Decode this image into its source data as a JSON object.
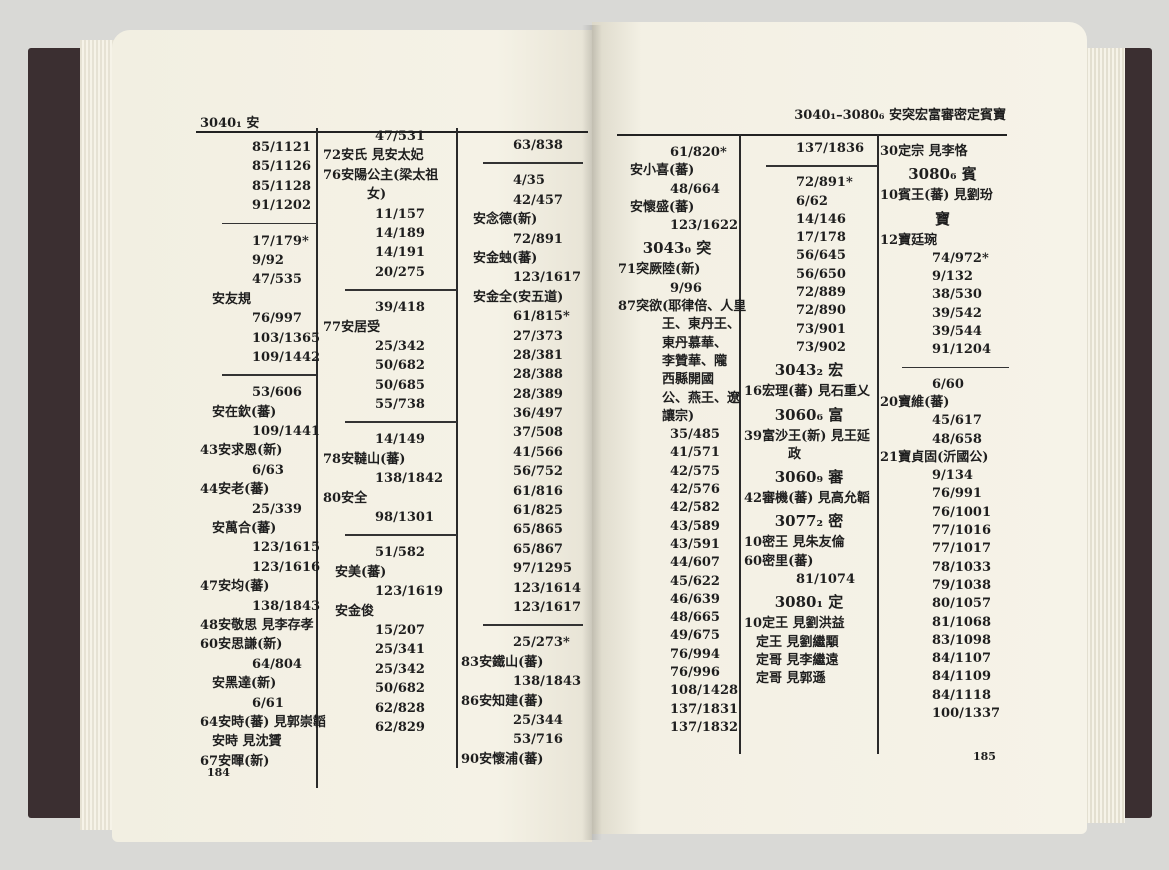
{
  "left_page": {
    "header": "3040₁ 安",
    "page_number": "184",
    "columns": [
      {
        "lines": [
          {
            "k": "n",
            "text": "85/1121"
          },
          {
            "k": "n",
            "text": "85/1126"
          },
          {
            "k": "n",
            "text": "85/1128"
          },
          {
            "k": "n",
            "text": "91/1202"
          },
          {
            "k": "r"
          },
          {
            "k": "n",
            "text": "17/179*"
          },
          {
            "k": "n",
            "text": "9/92"
          },
          {
            "k": "n",
            "text": "47/535"
          },
          {
            "k": "e2",
            "text": "安友規"
          },
          {
            "k": "n",
            "text": "76/997"
          },
          {
            "k": "n",
            "text": "103/1365"
          },
          {
            "k": "n",
            "text": "109/1442"
          },
          {
            "k": "r"
          },
          {
            "k": "n",
            "text": "53/606"
          },
          {
            "k": "e2",
            "text": "安在欽(蕃)"
          },
          {
            "k": "n",
            "text": "109/1441"
          },
          {
            "k": "e",
            "text": "43安求恩(新)"
          },
          {
            "k": "n",
            "text": "6/63"
          },
          {
            "k": "e",
            "text": "44安老(蕃)"
          },
          {
            "k": "n",
            "text": "25/339"
          },
          {
            "k": "e2",
            "text": "安萬合(蕃)"
          },
          {
            "k": "n",
            "text": "123/1615"
          },
          {
            "k": "n",
            "text": "123/1616"
          },
          {
            "k": "e",
            "text": "47安均(蕃)"
          },
          {
            "k": "n",
            "text": "138/1843"
          },
          {
            "k": "e",
            "text": "48安敬思 見李存孝"
          },
          {
            "k": "e",
            "text": "60安思謙(新)"
          },
          {
            "k": "n",
            "text": "64/804"
          },
          {
            "k": "e2",
            "text": "安黑達(新)"
          },
          {
            "k": "n",
            "text": "6/61"
          },
          {
            "k": "e",
            "text": "64安時(蕃) 見郭崇韜"
          },
          {
            "k": "e2",
            "text": "安時 見沈贇"
          },
          {
            "k": "e",
            "text": "67安暉(新)"
          }
        ]
      },
      {
        "lines": [
          {
            "k": "n",
            "text": "47/531"
          },
          {
            "k": "e",
            "text": "72安氏 見安太妃"
          },
          {
            "k": "e",
            "text": "76安陽公主(梁太祖"
          },
          {
            "k": "c",
            "text": "女)"
          },
          {
            "k": "n",
            "text": "11/157"
          },
          {
            "k": "n",
            "text": "14/189"
          },
          {
            "k": "n",
            "text": "14/191"
          },
          {
            "k": "n",
            "text": "20/275"
          },
          {
            "k": "r"
          },
          {
            "k": "n",
            "text": "39/418"
          },
          {
            "k": "e",
            "text": "77安居受"
          },
          {
            "k": "n",
            "text": "25/342"
          },
          {
            "k": "n",
            "text": "50/682"
          },
          {
            "k": "n",
            "text": "50/685"
          },
          {
            "k": "n",
            "text": "55/738"
          },
          {
            "k": "r"
          },
          {
            "k": "n",
            "text": "14/149"
          },
          {
            "k": "e",
            "text": "78安韃山(蕃)"
          },
          {
            "k": "n",
            "text": "138/1842"
          },
          {
            "k": "e",
            "text": "80安全"
          },
          {
            "k": "n",
            "text": "98/1301"
          },
          {
            "k": "r"
          },
          {
            "k": "n",
            "text": "51/582"
          },
          {
            "k": "e2",
            "text": "安美(蕃)"
          },
          {
            "k": "n",
            "text": "123/1619"
          },
          {
            "k": "e2",
            "text": "安金俊"
          },
          {
            "k": "n",
            "text": "15/207"
          },
          {
            "k": "n",
            "text": "25/341"
          },
          {
            "k": "n",
            "text": "25/342"
          },
          {
            "k": "n",
            "text": "50/682"
          },
          {
            "k": "n",
            "text": "62/828"
          },
          {
            "k": "n",
            "text": "62/829"
          }
        ]
      },
      {
        "lines": [
          {
            "k": "n",
            "text": "63/838"
          },
          {
            "k": "r"
          },
          {
            "k": "n",
            "text": "4/35"
          },
          {
            "k": "n",
            "text": "42/457"
          },
          {
            "k": "e2",
            "text": "安念德(新)"
          },
          {
            "k": "n",
            "text": "72/891"
          },
          {
            "k": "e2",
            "text": "安金䖵(蕃)"
          },
          {
            "k": "n",
            "text": "123/1617"
          },
          {
            "k": "e2",
            "text": "安金全(安五道)"
          },
          {
            "k": "n",
            "text": "61/815*"
          },
          {
            "k": "n",
            "text": "27/373"
          },
          {
            "k": "n",
            "text": "28/381"
          },
          {
            "k": "n",
            "text": "28/388"
          },
          {
            "k": "n",
            "text": "28/389"
          },
          {
            "k": "n",
            "text": "36/497"
          },
          {
            "k": "n",
            "text": "37/508"
          },
          {
            "k": "n",
            "text": "41/566"
          },
          {
            "k": "n",
            "text": "56/752"
          },
          {
            "k": "n",
            "text": "61/816"
          },
          {
            "k": "n",
            "text": "61/825"
          },
          {
            "k": "n",
            "text": "65/865"
          },
          {
            "k": "n",
            "text": "65/867"
          },
          {
            "k": "n",
            "text": "97/1295"
          },
          {
            "k": "n",
            "text": "123/1614"
          },
          {
            "k": "n",
            "text": "123/1617"
          },
          {
            "k": "r"
          },
          {
            "k": "n",
            "text": "25/273*"
          },
          {
            "k": "e",
            "text": "83安鐵山(蕃)"
          },
          {
            "k": "n",
            "text": "138/1843"
          },
          {
            "k": "e",
            "text": "86安知建(蕃)"
          },
          {
            "k": "n",
            "text": "25/344"
          },
          {
            "k": "n",
            "text": "53/716"
          },
          {
            "k": "e",
            "text": "90安懷浦(蕃)"
          }
        ]
      }
    ]
  },
  "right_page": {
    "header": "3040₁–3080₆ 安突宏富審密定賓寶",
    "page_number": "185",
    "columns": [
      {
        "lines": [
          {
            "k": "n",
            "text": "61/820*"
          },
          {
            "k": "e2",
            "text": "安小喜(蕃)"
          },
          {
            "k": "n",
            "text": "48/664"
          },
          {
            "k": "e2",
            "text": "安懷盛(蕃)"
          },
          {
            "k": "n",
            "text": "123/1622"
          },
          {
            "k": "h",
            "text": "3043₀ 突"
          },
          {
            "k": "e",
            "text": "71突厥陸(新)"
          },
          {
            "k": "n",
            "text": "9/96"
          },
          {
            "k": "e",
            "text": "87突欲(耶律倍、人皇"
          },
          {
            "k": "c",
            "text": "王、東丹王、"
          },
          {
            "k": "c",
            "text": "東丹慕華、"
          },
          {
            "k": "c",
            "text": "李贊華、隴"
          },
          {
            "k": "c",
            "text": "西縣開國"
          },
          {
            "k": "c",
            "text": "公、燕王、遼"
          },
          {
            "k": "c",
            "text": "讓宗)"
          },
          {
            "k": "n",
            "text": "35/485"
          },
          {
            "k": "n",
            "text": "41/571"
          },
          {
            "k": "n",
            "text": "42/575"
          },
          {
            "k": "n",
            "text": "42/576"
          },
          {
            "k": "n",
            "text": "42/582"
          },
          {
            "k": "n",
            "text": "43/589"
          },
          {
            "k": "n",
            "text": "43/591"
          },
          {
            "k": "n",
            "text": "44/607"
          },
          {
            "k": "n",
            "text": "45/622"
          },
          {
            "k": "n",
            "text": "46/639"
          },
          {
            "k": "n",
            "text": "48/665"
          },
          {
            "k": "n",
            "text": "49/675"
          },
          {
            "k": "n",
            "text": "76/994"
          },
          {
            "k": "n",
            "text": "76/996"
          },
          {
            "k": "n",
            "text": "108/1428"
          },
          {
            "k": "n",
            "text": "137/1831"
          },
          {
            "k": "n",
            "text": "137/1832"
          }
        ]
      },
      {
        "lines": [
          {
            "k": "n",
            "text": "137/1836"
          },
          {
            "k": "r"
          },
          {
            "k": "n",
            "text": "72/891*"
          },
          {
            "k": "n",
            "text": "6/62"
          },
          {
            "k": "n",
            "text": "14/146"
          },
          {
            "k": "n",
            "text": "17/178"
          },
          {
            "k": "n",
            "text": "56/645"
          },
          {
            "k": "n",
            "text": "56/650"
          },
          {
            "k": "n",
            "text": "72/889"
          },
          {
            "k": "n",
            "text": "72/890"
          },
          {
            "k": "n",
            "text": "73/901"
          },
          {
            "k": "n",
            "text": "73/902"
          },
          {
            "k": "h",
            "text": "3043₂ 宏"
          },
          {
            "k": "e",
            "text": "16宏理(蕃) 見石重乂"
          },
          {
            "k": "h",
            "text": "3060₆ 富"
          },
          {
            "k": "e",
            "text": "39富沙王(新) 見王延"
          },
          {
            "k": "c",
            "text": "政"
          },
          {
            "k": "h",
            "text": "3060₉ 審"
          },
          {
            "k": "e",
            "text": "42審機(蕃) 見高允韜"
          },
          {
            "k": "h",
            "text": "3077₂ 密"
          },
          {
            "k": "e",
            "text": "10密王 見朱友倫"
          },
          {
            "k": "e",
            "text": "60密里(蕃)"
          },
          {
            "k": "n",
            "text": "81/1074"
          },
          {
            "k": "h",
            "text": "3080₁ 定"
          },
          {
            "k": "e",
            "text": "10定王 見劉洪益"
          },
          {
            "k": "e2",
            "text": "定王 見劉繼顒"
          },
          {
            "k": "e2",
            "text": "定哥 見李繼遠"
          },
          {
            "k": "e2",
            "text": "定哥 見郭遜"
          }
        ]
      },
      {
        "lines": [
          {
            "k": "e",
            "text": "30定宗 見李恪"
          },
          {
            "k": "h",
            "text": "3080₆ 賓"
          },
          {
            "k": "e",
            "text": "10賓王(蕃) 見劉玢"
          },
          {
            "k": "h",
            "text": "寶"
          },
          {
            "k": "e",
            "text": "12寶廷琬"
          },
          {
            "k": "n",
            "text": "74/972*"
          },
          {
            "k": "n",
            "text": "9/132"
          },
          {
            "k": "n",
            "text": "38/530"
          },
          {
            "k": "n",
            "text": "39/542"
          },
          {
            "k": "n",
            "text": "39/544"
          },
          {
            "k": "n",
            "text": "91/1204"
          },
          {
            "k": "r"
          },
          {
            "k": "n",
            "text": "6/60"
          },
          {
            "k": "e",
            "text": "20寶維(蕃)"
          },
          {
            "k": "n",
            "text": "45/617"
          },
          {
            "k": "n",
            "text": "48/658"
          },
          {
            "k": "e",
            "text": "21寶貞固(沂國公)"
          },
          {
            "k": "n",
            "text": "9/134"
          },
          {
            "k": "n",
            "text": "76/991"
          },
          {
            "k": "n",
            "text": "76/1001"
          },
          {
            "k": "n",
            "text": "77/1016"
          },
          {
            "k": "n",
            "text": "77/1017"
          },
          {
            "k": "n",
            "text": "78/1033"
          },
          {
            "k": "n",
            "text": "79/1038"
          },
          {
            "k": "n",
            "text": "80/1057"
          },
          {
            "k": "n",
            "text": "81/1068"
          },
          {
            "k": "n",
            "text": "83/1098"
          },
          {
            "k": "n",
            "text": "84/1107"
          },
          {
            "k": "n",
            "text": "84/1109"
          },
          {
            "k": "n",
            "text": "84/1118"
          },
          {
            "k": "n",
            "text": "100/1337"
          }
        ]
      }
    ]
  }
}
